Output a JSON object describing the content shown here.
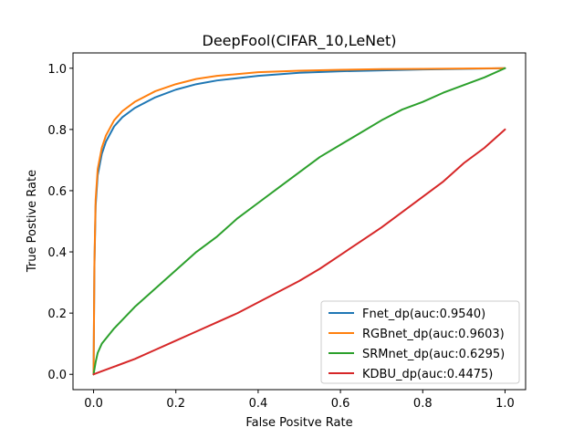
{
  "chart_data": {
    "type": "line",
    "title": "DeepFool(CIFAR_10,LeNet)",
    "xlabel": "False Positve Rate",
    "ylabel": "True Postive Rate",
    "xlim": [
      -0.05,
      1.05
    ],
    "ylim": [
      -0.05,
      1.05
    ],
    "xticks": [
      "0.0",
      "0.2",
      "0.4",
      "0.6",
      "0.8",
      "1.0"
    ],
    "yticks": [
      "0.0",
      "0.2",
      "0.4",
      "0.6",
      "0.8",
      "1.0"
    ],
    "grid": false,
    "legend_position": "lower-right",
    "series": [
      {
        "name": "Fnet_dp(auc:0.9540)",
        "color": "#1f77b4",
        "x": [
          0,
          0.002,
          0.005,
          0.01,
          0.02,
          0.03,
          0.05,
          0.07,
          0.1,
          0.15,
          0.2,
          0.25,
          0.3,
          0.4,
          0.5,
          0.6,
          0.7,
          0.8,
          0.9,
          1.0
        ],
        "y": [
          0,
          0.35,
          0.55,
          0.65,
          0.72,
          0.76,
          0.81,
          0.84,
          0.87,
          0.905,
          0.93,
          0.948,
          0.96,
          0.975,
          0.985,
          0.99,
          0.993,
          0.996,
          0.998,
          1.0
        ]
      },
      {
        "name": "RGBnet_dp(auc:0.9603)",
        "color": "#ff7f0e",
        "x": [
          0,
          0.002,
          0.005,
          0.01,
          0.02,
          0.03,
          0.05,
          0.07,
          0.1,
          0.15,
          0.2,
          0.25,
          0.3,
          0.4,
          0.5,
          0.6,
          0.7,
          0.8,
          0.9,
          1.0
        ],
        "y": [
          0,
          0.36,
          0.57,
          0.67,
          0.74,
          0.78,
          0.83,
          0.86,
          0.89,
          0.925,
          0.948,
          0.965,
          0.975,
          0.987,
          0.992,
          0.995,
          0.997,
          0.998,
          0.999,
          1.0
        ]
      },
      {
        "name": "SRMnet_dp(auc:0.6295)",
        "color": "#2ca02c",
        "x": [
          0,
          0.005,
          0.01,
          0.02,
          0.05,
          0.1,
          0.15,
          0.2,
          0.25,
          0.3,
          0.35,
          0.4,
          0.45,
          0.5,
          0.55,
          0.6,
          0.65,
          0.7,
          0.75,
          0.8,
          0.85,
          0.9,
          0.95,
          1.0
        ],
        "y": [
          0,
          0.04,
          0.07,
          0.1,
          0.15,
          0.22,
          0.28,
          0.34,
          0.4,
          0.45,
          0.51,
          0.56,
          0.61,
          0.66,
          0.71,
          0.75,
          0.79,
          0.83,
          0.865,
          0.89,
          0.92,
          0.945,
          0.97,
          1.0
        ]
      },
      {
        "name": "KDBU_dp(auc:0.4475)",
        "color": "#d62728",
        "x": [
          0,
          0.02,
          0.05,
          0.1,
          0.15,
          0.2,
          0.25,
          0.3,
          0.35,
          0.4,
          0.45,
          0.5,
          0.55,
          0.6,
          0.65,
          0.7,
          0.75,
          0.8,
          0.85,
          0.9,
          0.95,
          1.0
        ],
        "y": [
          0,
          0.01,
          0.025,
          0.05,
          0.08,
          0.11,
          0.14,
          0.17,
          0.2,
          0.235,
          0.27,
          0.305,
          0.345,
          0.39,
          0.435,
          0.48,
          0.53,
          0.58,
          0.63,
          0.69,
          0.74,
          0.8
        ]
      }
    ]
  }
}
